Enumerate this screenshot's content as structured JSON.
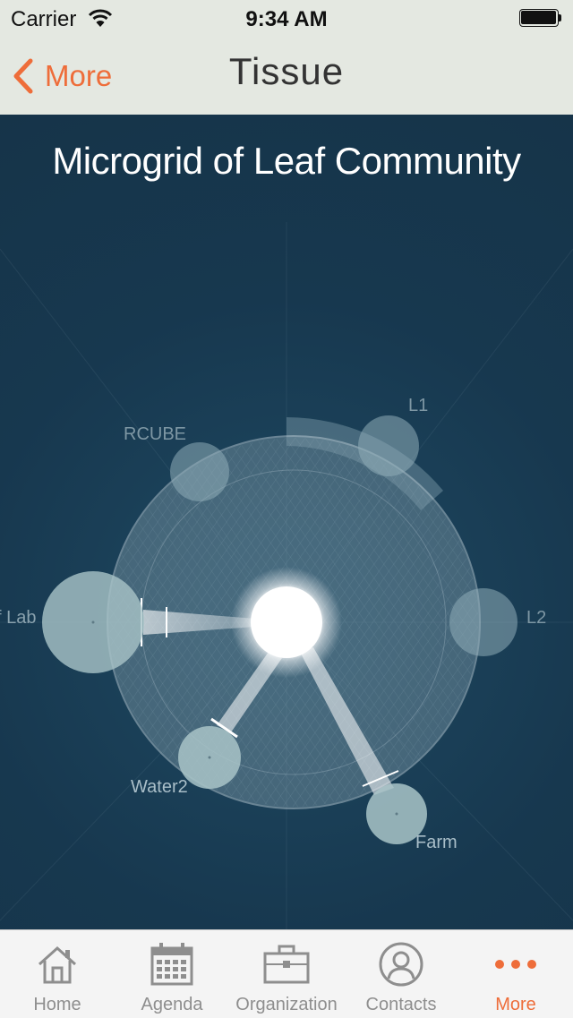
{
  "status_bar": {
    "carrier": "Carrier",
    "time": "9:34 AM"
  },
  "nav": {
    "back_label": "More",
    "title": "Tissue"
  },
  "visualization": {
    "title": "Microgrid of Leaf Community",
    "nodes": [
      {
        "label": "L1"
      },
      {
        "label": "RCUBE"
      },
      {
        "label": "f Lab"
      },
      {
        "label": "L2"
      },
      {
        "label": "Water2"
      },
      {
        "label": "Farm"
      }
    ]
  },
  "tabs": [
    {
      "label": "Home",
      "icon": "home-icon",
      "active": false
    },
    {
      "label": "Agenda",
      "icon": "calendar-icon",
      "active": false
    },
    {
      "label": "Organization",
      "icon": "briefcase-icon",
      "active": false
    },
    {
      "label": "Contacts",
      "icon": "contact-icon",
      "active": false
    },
    {
      "label": "More",
      "icon": "more-dots-icon",
      "active": true
    }
  ],
  "colors": {
    "accent": "#ee6d3a",
    "background": "#17384f",
    "header": "#e4e8e1"
  }
}
